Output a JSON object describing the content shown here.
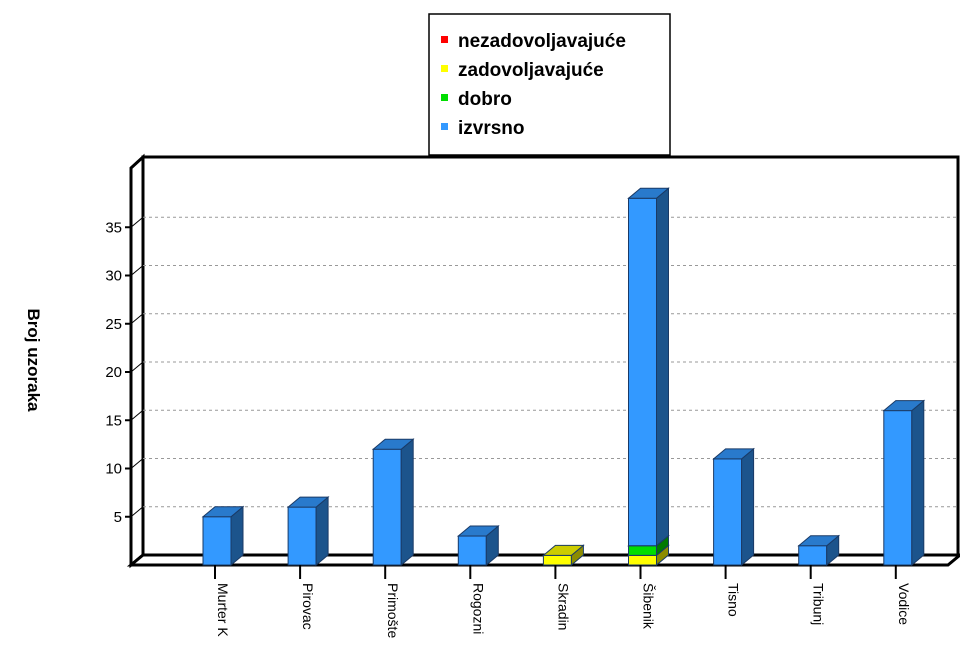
{
  "chart_data": {
    "type": "bar",
    "stacked": true,
    "three_d": true,
    "ylabel": "Broj uzoraka",
    "xlabel": "",
    "ylim": [
      0,
      40
    ],
    "yticks": [
      5,
      10,
      15,
      20,
      25,
      30,
      35
    ],
    "grid": true,
    "legend_position": "top-center",
    "categories": [
      "Murter K",
      "Pirovac",
      "Primošte",
      "Rogozni",
      "Skradin",
      "Šibenik",
      "Tisno",
      "Tribunj",
      "Vodice"
    ],
    "series": [
      {
        "name": "nezadovoljavajuće",
        "color": "#ff0000",
        "values": [
          0,
          0,
          0,
          0,
          0,
          0,
          0,
          0,
          0
        ]
      },
      {
        "name": "zadovoljavajuće",
        "color": "#ffff00",
        "values": [
          0,
          0,
          0,
          0,
          1,
          1,
          0,
          0,
          0
        ]
      },
      {
        "name": "dobro",
        "color": "#00dd00",
        "values": [
          0,
          0,
          0,
          0,
          0,
          1,
          0,
          0,
          0
        ]
      },
      {
        "name": "izvrsno",
        "color": "#3399ff",
        "values": [
          5,
          6,
          12,
          3,
          0,
          36,
          11,
          2,
          16
        ]
      }
    ]
  }
}
